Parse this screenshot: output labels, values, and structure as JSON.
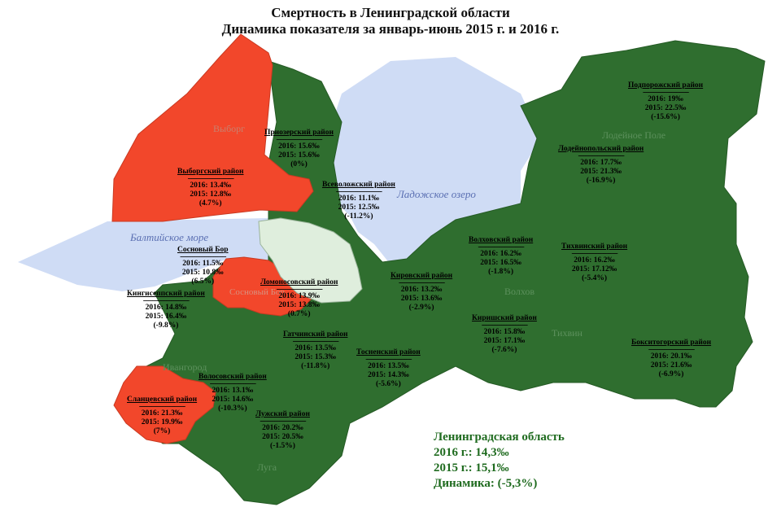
{
  "title": {
    "line1": "Смертность в Ленинградской области",
    "line2": "Динамика показателя за январь-июнь 2015 г. и 2016 г."
  },
  "colors": {
    "decrease": "#2f6e2f",
    "increase": "#f2472b",
    "water": "#cfdcf5",
    "city": "#dfeedd"
  },
  "water_labels": {
    "ladoga": "Ладожское озеро",
    "baltic": "Балтийское море"
  },
  "town_labels": {
    "vyborg": "Выборг",
    "lodeynoe_pole": "Лодейное Поле",
    "volkhov": "Волхов",
    "tikhvin": "Тихвин",
    "ivangorod": "Ивангород",
    "luga": "Луга",
    "sosnovy_bor_town": "Сосновый Бор"
  },
  "separator": "--------------------------",
  "districts": {
    "vyborgsky": {
      "name": "Выборгский район",
      "y2016": "2016: 13.4‰",
      "y2015": "2015: 12.8‰",
      "change": "(4.7%)",
      "trend": "increase"
    },
    "priozersky": {
      "name": "Приозерский район",
      "y2016": "2016: 15.6‰",
      "y2015": "2015: 15.6‰",
      "change": "(0%)",
      "trend": "decrease"
    },
    "vsevolozhsky": {
      "name": "Всеволожский район",
      "y2016": "2016: 11.1‰",
      "y2015": "2015: 12.5‰",
      "change": "(-11.2%)",
      "trend": "decrease"
    },
    "sosnovy_bor": {
      "name": "Сосновый Бор",
      "y2016": "2016: 11.5‰",
      "y2015": "2015: 10.8‰",
      "change": "(6.5%)",
      "trend": "increase"
    },
    "lomonosovsky": {
      "name": "Ломоносовский район",
      "y2016": "2016: 13.9‰",
      "y2015": "2015: 13.8‰",
      "change": "(0.7%)",
      "trend": "increase"
    },
    "kingiseppsky": {
      "name": "Кингисеппский район",
      "y2016": "2016: 14.8‰",
      "y2015": "2015: 16.4‰",
      "change": "(-9.8%)",
      "trend": "decrease"
    },
    "podporozhsky": {
      "name": "Подпорожский район",
      "y2016": "2016: 19‰",
      "y2015": "2015: 22.5‰",
      "change": "(-15.6%)",
      "trend": "decrease"
    },
    "lodeynopolsky": {
      "name": "Лодейнопольский район",
      "y2016": "2016: 17.7‰",
      "y2015": "2015: 21.3‰",
      "change": "(-16.9%)",
      "trend": "decrease"
    },
    "volkhovsky": {
      "name": "Волховский район",
      "y2016": "2016: 16.2‰",
      "y2015": "2015: 16.5‰",
      "change": "(-1.8%)",
      "trend": "decrease"
    },
    "tikhvinsky": {
      "name": "Тихвинский район",
      "y2016": "2016: 16.2‰",
      "y2015": "2015: 17.12‰",
      "change": "(-5.4%)",
      "trend": "decrease"
    },
    "kirovsky": {
      "name": "Кировский район",
      "y2016": "2016: 13.2‰",
      "y2015": "2015: 13.6‰",
      "change": "(-2.9%)",
      "trend": "decrease"
    },
    "kirishsky": {
      "name": "Киришский район",
      "y2016": "2016: 15.8‰",
      "y2015": "2015: 17.1‰",
      "change": "(-7.6%)",
      "trend": "decrease"
    },
    "boksitogorsky": {
      "name": "Бокситогорский район",
      "y2016": "2016: 20.1‰",
      "y2015": "2015: 21.6‰",
      "change": "(-6.9%)",
      "trend": "decrease"
    },
    "gatchinsky": {
      "name": "Гатчинский район",
      "y2016": "2016: 13.5‰",
      "y2015": "2015: 15.3‰",
      "change": "(-11.8%)",
      "trend": "decrease"
    },
    "tosnensky": {
      "name": "Тосненский район",
      "y2016": "2016: 13.5‰",
      "y2015": "2015: 14.3‰",
      "change": "(-5.6%)",
      "trend": "decrease"
    },
    "volosovsky": {
      "name": "Волосовский район",
      "y2016": "2016: 13.1‰",
      "y2015": "2015: 14.6‰",
      "change": "(-10.3%)",
      "trend": "decrease"
    },
    "slantsevsky": {
      "name": "Сланцевский район",
      "y2016": "2016: 21.3‰",
      "y2015": "2015: 19.9‰",
      "change": "(7%)",
      "trend": "increase"
    },
    "luzhsky": {
      "name": "Лужский район",
      "y2016": "2016: 20.2‰",
      "y2015": "2015: 20.5‰",
      "change": "(-1.5%)",
      "trend": "decrease"
    }
  },
  "summary": {
    "region": "Ленинградская область",
    "y2016": "2016 г.: 14,3‰",
    "y2015": "2015 г.: 15,1‰",
    "change": "Динамика: (-5,3%)"
  }
}
